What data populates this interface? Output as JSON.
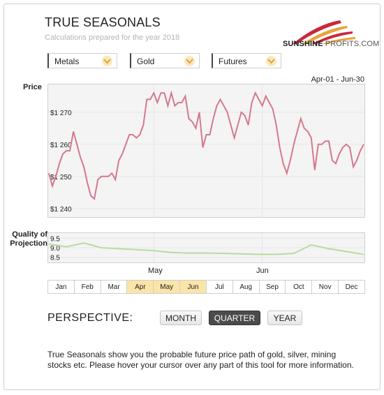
{
  "header": {
    "title": "TRUE SEASONALS",
    "subtitle": "Calculations prepared for the year 2018",
    "logo_main": "SUNSHINE",
    "logo_secondary": "PROFITS.COM"
  },
  "filters": {
    "asset_class": "Metals",
    "asset": "Gold",
    "instrument": "Futures"
  },
  "range_label": "Apr-01 - Jun-30",
  "axis_titles": {
    "price": "Price",
    "quality": "Quality of Projection"
  },
  "month_labels": {
    "may": "May",
    "jun": "Jun"
  },
  "month_bar": [
    "Jan",
    "Feb",
    "Mar",
    "Apr",
    "May",
    "Jun",
    "Jul",
    "Aug",
    "Sep",
    "Oct",
    "Nov",
    "Dec"
  ],
  "month_bar_selected": [
    "Apr",
    "May",
    "Jun"
  ],
  "perspective": {
    "label": "PERSPECTIVE:",
    "buttons": [
      "MONTH",
      "QUARTER",
      "YEAR"
    ],
    "active": "QUARTER"
  },
  "description": "True Seasonals show you the probable future price path of gold, silver, mining stocks etc. Please hover your cursor over any part of this tool for more information.",
  "colors": {
    "price_line": "#d5788d",
    "quality_line": "#b7dca0",
    "selected_month": "#fbe4a8",
    "chevron_bg": "#fbe7bd",
    "chevron": "#e0a33a",
    "logo_red": "#c9283b",
    "logo_gold": "#e8a33c"
  },
  "icons": {
    "dropdown": "chevron-down-icon",
    "logo": "sunshine-rays-icon"
  },
  "chart_data": [
    {
      "type": "line",
      "title": "",
      "ylabel": "Price",
      "ylim": [
        1238,
        1278
      ],
      "yticks": [
        1240,
        1250,
        1260,
        1270
      ],
      "ytick_labels": [
        "$1 240",
        "$1 250",
        "$1 260",
        "$1 270"
      ],
      "xlim": [
        0,
        90
      ],
      "xlabel_marks": [
        {
          "label": "May",
          "x": 30
        },
        {
          "label": "Jun",
          "x": 61
        }
      ],
      "grid": true,
      "series": [
        {
          "x": [
            0,
            1,
            2,
            3,
            4,
            5,
            6,
            7,
            8,
            9,
            10,
            11,
            12,
            13,
            14,
            15,
            16,
            17,
            18,
            19,
            20,
            21,
            22,
            23,
            24,
            25,
            26,
            27,
            28,
            29,
            30,
            31,
            32,
            33,
            34,
            35,
            36,
            37,
            38,
            39,
            40,
            41,
            42,
            43,
            44,
            45,
            46,
            47,
            48,
            49,
            50,
            51,
            52,
            53,
            54,
            55,
            56,
            57,
            58,
            59,
            60,
            61,
            62,
            63,
            64,
            65,
            66,
            67,
            68,
            69,
            70,
            71,
            72,
            73,
            74,
            75,
            76,
            77,
            78,
            79,
            80,
            81,
            82,
            83,
            84,
            85,
            86,
            87,
            88,
            89,
            90
          ],
          "y": [
            1251,
            1247,
            1250,
            1254,
            1257,
            1258,
            1258,
            1264,
            1260,
            1256,
            1253,
            1248,
            1244,
            1243,
            1249,
            1250,
            1250,
            1250,
            1251,
            1249,
            1255,
            1257,
            1260,
            1263,
            1263,
            1262,
            1263,
            1266,
            1274,
            1274,
            1276,
            1273,
            1276,
            1276,
            1272,
            1276,
            1272,
            1273,
            1273,
            1275,
            1268,
            1267,
            1265,
            1270,
            1259,
            1263,
            1263,
            1268,
            1272,
            1274,
            1272,
            1270,
            1266,
            1262,
            1266,
            1270,
            1269,
            1266,
            1273,
            1276,
            1274,
            1272,
            1275,
            1273,
            1271,
            1266,
            1259,
            1254,
            1251,
            1255,
            1260,
            1264,
            1268,
            1265,
            1264,
            1262,
            1252,
            1260,
            1260,
            1261,
            1261,
            1255,
            1254,
            1257,
            1259,
            1260,
            1259,
            1253,
            1255,
            1258,
            1260
          ]
        }
      ]
    },
    {
      "type": "line",
      "title": "",
      "ylabel": "Quality of Projection",
      "ylim": [
        8.3,
        9.7
      ],
      "yticks": [
        8.5,
        9.0,
        9.5
      ],
      "ytick_labels": [
        "8.5",
        "9.0",
        "9.5"
      ],
      "xlim": [
        0,
        90
      ],
      "grid": true,
      "series": [
        {
          "x": [
            0,
            5,
            10,
            15,
            20,
            25,
            30,
            35,
            40,
            45,
            50,
            55,
            60,
            65,
            70,
            75,
            80,
            85,
            90
          ],
          "y": [
            9.2,
            9.05,
            9.25,
            9.0,
            8.95,
            8.9,
            8.85,
            8.75,
            8.72,
            8.72,
            8.7,
            8.68,
            8.65,
            8.65,
            8.7,
            9.15,
            8.95,
            8.8,
            8.65
          ]
        }
      ]
    }
  ]
}
